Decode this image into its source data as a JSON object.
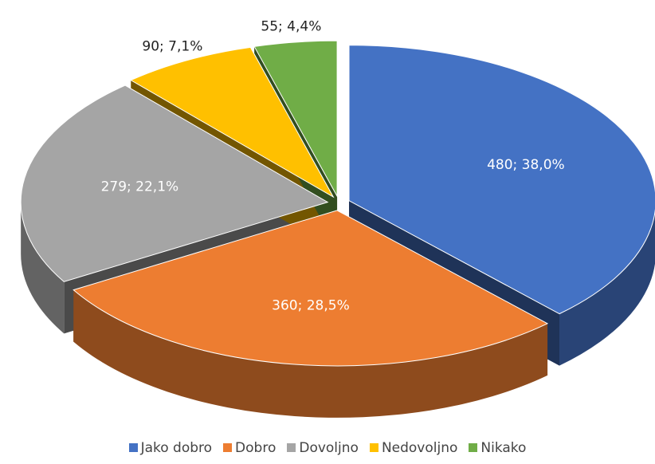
{
  "chart_data": {
    "type": "pie",
    "categories": [
      "Jako dobro",
      "Dobro",
      "Dovoljno",
      "Nedovoljno",
      "Nikako"
    ],
    "values": [
      480,
      360,
      279,
      90,
      55
    ],
    "value_labels": [
      "480; 38,0%",
      "360; 28,5%",
      "279; 22,1%",
      "90; 7,1%",
      "55; 4,4%"
    ],
    "colors": [
      "#4472c4",
      "#ed7d31",
      "#a5a5a5",
      "#ffc000",
      "#70ad47"
    ],
    "legend": "bottom"
  }
}
